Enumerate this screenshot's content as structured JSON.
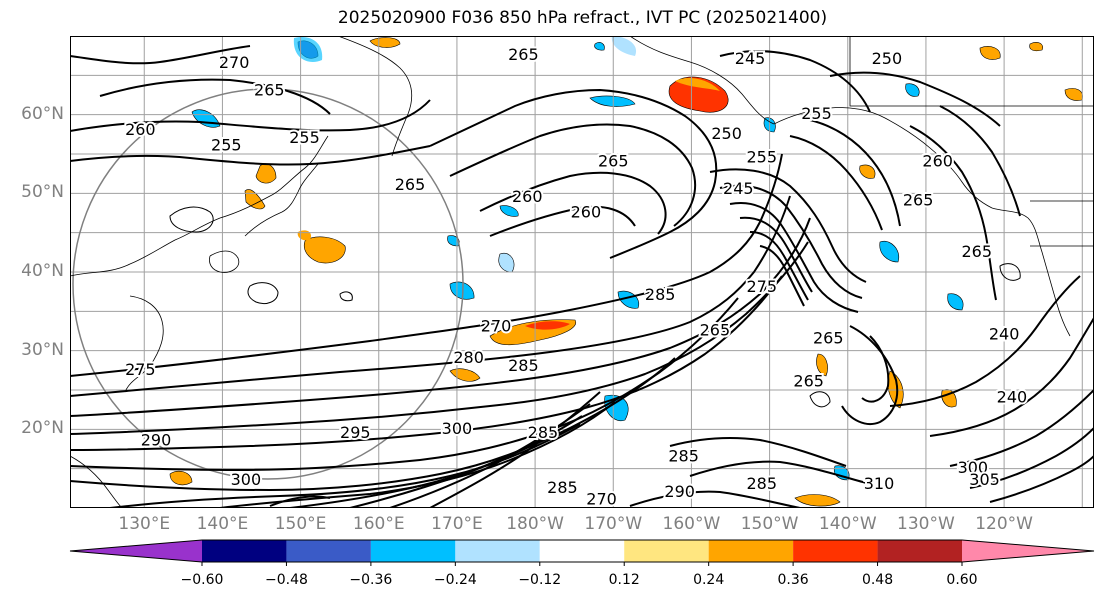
{
  "title": "2025020900 F036 850 hPa refract., IVT PC (2025021400)",
  "map": {
    "lat_labels": [
      {
        "text": "60°N",
        "lat": 60
      },
      {
        "text": "50°N",
        "lat": 50
      },
      {
        "text": "40°N",
        "lat": 40
      },
      {
        "text": "30°N",
        "lat": 30
      },
      {
        "text": "20°N",
        "lat": 20
      }
    ],
    "lon_labels": [
      {
        "text": "130°E",
        "lon": 130
      },
      {
        "text": "140°E",
        "lon": 140
      },
      {
        "text": "150°E",
        "lon": 150
      },
      {
        "text": "160°E",
        "lon": 160
      },
      {
        "text": "170°E",
        "lon": 170
      },
      {
        "text": "180°W",
        "lon": 180
      },
      {
        "text": "170°W",
        "lon": 190
      },
      {
        "text": "160°W",
        "lon": 200
      },
      {
        "text": "150°W",
        "lon": 210
      },
      {
        "text": "140°W",
        "lon": 220
      },
      {
        "text": "130°W",
        "lon": 230
      },
      {
        "text": "120°W",
        "lon": 240
      }
    ],
    "lon_range": [
      120.5,
      251.5
    ],
    "lat_range": [
      10,
      70
    ],
    "grid": true,
    "contour_labels": [
      {
        "text": "265",
        "lon": 178.5,
        "lat": 67.5
      },
      {
        "text": "270",
        "lon": 141.5,
        "lat": 66.5
      },
      {
        "text": "265",
        "lon": 146.0,
        "lat": 63.0
      },
      {
        "text": "260",
        "lon": 129.5,
        "lat": 58.0
      },
      {
        "text": "255",
        "lon": 140.5,
        "lat": 56.0
      },
      {
        "text": "255",
        "lon": 150.5,
        "lat": 57.0
      },
      {
        "text": "265",
        "lon": 164.0,
        "lat": 51.0
      },
      {
        "text": "260",
        "lon": 179.0,
        "lat": 49.5
      },
      {
        "text": "260",
        "lon": 186.5,
        "lat": 47.5
      },
      {
        "text": "265",
        "lon": 190.0,
        "lat": 54.0
      },
      {
        "text": "245",
        "lon": 207.5,
        "lat": 67.0
      },
      {
        "text": "255",
        "lon": 216.0,
        "lat": 60.0
      },
      {
        "text": "250",
        "lon": 204.5,
        "lat": 57.5
      },
      {
        "text": "255",
        "lon": 209.0,
        "lat": 54.5
      },
      {
        "text": "245",
        "lon": 206.0,
        "lat": 50.5
      },
      {
        "text": "250",
        "lon": 225.0,
        "lat": 67.0
      },
      {
        "text": "260",
        "lon": 231.5,
        "lat": 54.0
      },
      {
        "text": "265",
        "lon": 229.0,
        "lat": 49.0
      },
      {
        "text": "265",
        "lon": 236.5,
        "lat": 42.5
      },
      {
        "text": "275",
        "lon": 209.0,
        "lat": 38.0
      },
      {
        "text": "285",
        "lon": 196.0,
        "lat": 37.0
      },
      {
        "text": "270",
        "lon": 175.0,
        "lat": 33.0
      },
      {
        "text": "280",
        "lon": 171.5,
        "lat": 29.0
      },
      {
        "text": "285",
        "lon": 178.5,
        "lat": 28.0
      },
      {
        "text": "275",
        "lon": 129.5,
        "lat": 27.5
      },
      {
        "text": "265",
        "lon": 217.5,
        "lat": 31.5
      },
      {
        "text": "265",
        "lon": 203.0,
        "lat": 32.5
      },
      {
        "text": "265",
        "lon": 215.0,
        "lat": 26.0
      },
      {
        "text": "240",
        "lon": 240.0,
        "lat": 32.0
      },
      {
        "text": "240",
        "lon": 241.0,
        "lat": 24.0
      },
      {
        "text": "295",
        "lon": 157.0,
        "lat": 19.5
      },
      {
        "text": "290",
        "lon": 131.5,
        "lat": 18.5
      },
      {
        "text": "300",
        "lon": 143.0,
        "lat": 13.5
      },
      {
        "text": "300",
        "lon": 170.0,
        "lat": 20.0
      },
      {
        "text": "285",
        "lon": 181.0,
        "lat": 19.5
      },
      {
        "text": "285",
        "lon": 199.0,
        "lat": 16.5
      },
      {
        "text": "285",
        "lon": 209.0,
        "lat": 13.0
      },
      {
        "text": "270",
        "lon": 188.5,
        "lat": 11.0
      },
      {
        "text": "290",
        "lon": 198.5,
        "lat": 12.0
      },
      {
        "text": "285",
        "lon": 183.5,
        "lat": 12.5
      },
      {
        "text": "300",
        "lon": 236.0,
        "lat": 15.0
      },
      {
        "text": "305",
        "lon": 237.5,
        "lat": 13.5
      },
      {
        "text": "310",
        "lon": 224.0,
        "lat": 13.0
      }
    ]
  },
  "colorbar": {
    "colors": [
      "#9932cc",
      "#000080",
      "#3a5bc7",
      "#00bfff",
      "#b0e2ff",
      "#ffffff",
      "#ffe680",
      "#ffa500",
      "#ff3300",
      "#b22222",
      "#ff88aa"
    ],
    "tick_labels": [
      "−0.60",
      "−0.48",
      "−0.36",
      "−0.24",
      "−0.12",
      "0.12",
      "0.24",
      "0.36",
      "0.48",
      "0.60"
    ]
  }
}
